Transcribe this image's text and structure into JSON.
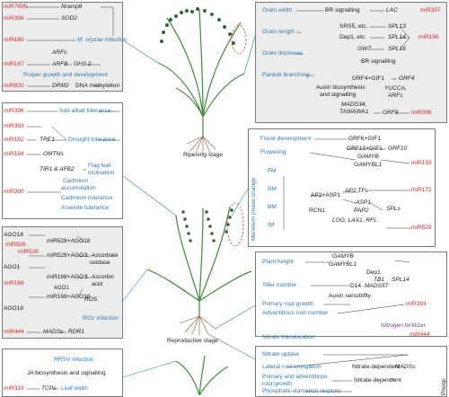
{
  "colors": {
    "mirna": "#cf2a27",
    "trait": "#2f79b6",
    "nitrogen": "#6a4b8f",
    "box_fill": "#ececec",
    "plant_green": "#3f8a3a",
    "grain_green": "#2e6b33"
  },
  "panel1": {
    "mir7695": "miR7695",
    "nramp6": "Nramp6",
    "mir398": "miR398",
    "sod2": "SOD2",
    "mir160": "miR160",
    "oryzae": "M. oryzae infection",
    "arfs": "ARFs",
    "mir167": "miR167",
    "arf8": "ARF8",
    "gh32": "GH3-2",
    "proper": "Proper growth and development",
    "mir820": "miR820",
    "drm2": "DRM2",
    "dna": "DNA methylation"
  },
  "panel2": {
    "mir396": "miR396",
    "salt": "Salt-alkali tolerance",
    "mir393": "miR393",
    "tre1": "TRE1",
    "mir162": "miR162",
    "drought": "Drought tolerance",
    "mir164": "miR164",
    "omtns": "OMTNs",
    "tir1": "TIR1 & AFB2",
    "flag": "Flag leaf",
    "inclination": "inclination",
    "mir390": "miR390",
    "cadmium1": "Cadmium",
    "accumulation": "accumulation",
    "cadmium_tol": "Cadmium tolerance",
    "arsenite": "Arsenite tolerance"
  },
  "panel3": {
    "ago18a": "AGO18",
    "mir528a": "miR528",
    "mir528ago18": "miR528+AGO18",
    "mir528b": "miR528",
    "mir528ago1": "miR528+AGO1",
    "ascorbate": "L-Ascorbate",
    "oxidase": "oxidase",
    "ago1a": "AGO1",
    "mir168ago1": "miR168+AGO1",
    "mir168": "miR168",
    "lascorbic": "L-Ascorbic",
    "acid": "acid",
    "ago1b": "AGO1",
    "mir168ago18": "miR168+AGO18",
    "ros": "ROS",
    "ago18b": "AGO18",
    "rsv": "RSV infection",
    "mir444": "miR444",
    "mads": "MADSs",
    "rdr1": "RDR1"
  },
  "panel4": {
    "rrsv": "RRSV infection",
    "ja": "JA biosynthesis and signalling",
    "mir319": "miR319",
    "tcps": "TCPs",
    "leaf": "Leaf width"
  },
  "panel5": {
    "grain_width": "Grain width",
    "grain_length": "Grain length",
    "grain_thickness": "Grain thickness",
    "panicle": "Panicle branching",
    "br1": "BR signalling",
    "lac": "LAC",
    "mir397": "miR397",
    "srs5": "SRS5, etc.",
    "spl13": "SPL13",
    "dep1": "Dep1, etc.",
    "spl14": "SPL14",
    "mir156": "miR156",
    "gw7": "GW7",
    "spl16": "SPL16",
    "br2": "BR signalling",
    "grf4gif1": "GRF4+GIF1",
    "grf4": "GRF4",
    "auxin1": "Auxin biosynthesis",
    "auxin2": "and signalling",
    "yucca": "YUCCA,",
    "arfs": "ARFs",
    "mads34": "MADS34,",
    "tawawa": "TAWAWA1",
    "grf6": "GRF6",
    "mir396": "miR396"
  },
  "panel6": {
    "floret": "Floret development",
    "grf6gif1": "GRF6+GIF1",
    "grf10gif1": "GRF10+GIF1",
    "grf10": "GRF10",
    "flowering": "Flowering",
    "gamyb": "GAMYB",
    "gamybl1": "GAMYBL1",
    "mir159": "miR159",
    "meristem": "Meristem phase change",
    "fm": "FM",
    "sm": "SM",
    "bm": "BM",
    "im": "IM",
    "ap2tfs": "AP2 TFs",
    "ap2asp1": "AP2+ASP1",
    "asp1": "ASP1",
    "mir172": "miR172",
    "rcn1": "RCN1",
    "pap2": "PAP2",
    "log": "LOG, LAX1, RFL",
    "spls": "SPLs",
    "mir529": "miR529"
  },
  "panel7": {
    "height": "Plant height",
    "gamyb": "GAMYB",
    "gamybl1": "GAMYBL1",
    "dep1": "Dep1",
    "tb1": "TB1",
    "spl14": "SPL14",
    "tiller": "Tiller number",
    "d14": "D14",
    "mads57": "MADS57",
    "auxin": "Auxin sensitivity",
    "primary": "Primary root growth",
    "mir393": "miR393",
    "adventitious": "Adventitious root number",
    "nitrogen": "Nitrogen fertilizer"
  },
  "panel8": {
    "translocation": "Nitrate translocation",
    "mir444": "miR444",
    "uptake": "Nitrate uptake",
    "lateral": "Lateral root elongation",
    "nitrate_dep1": "Nitrate-dependent",
    "mads": "MADSs",
    "prim_adv1": "Primary and adventitious",
    "prim_adv2": "root growth",
    "nitrate_dep2": "Nitrate-dependent",
    "phosphate": "Phosphate-starvation respons",
    "side": "Phosp"
  },
  "stages": {
    "ripening": "Ripening stage",
    "reproductive": "Reproductive stage"
  }
}
